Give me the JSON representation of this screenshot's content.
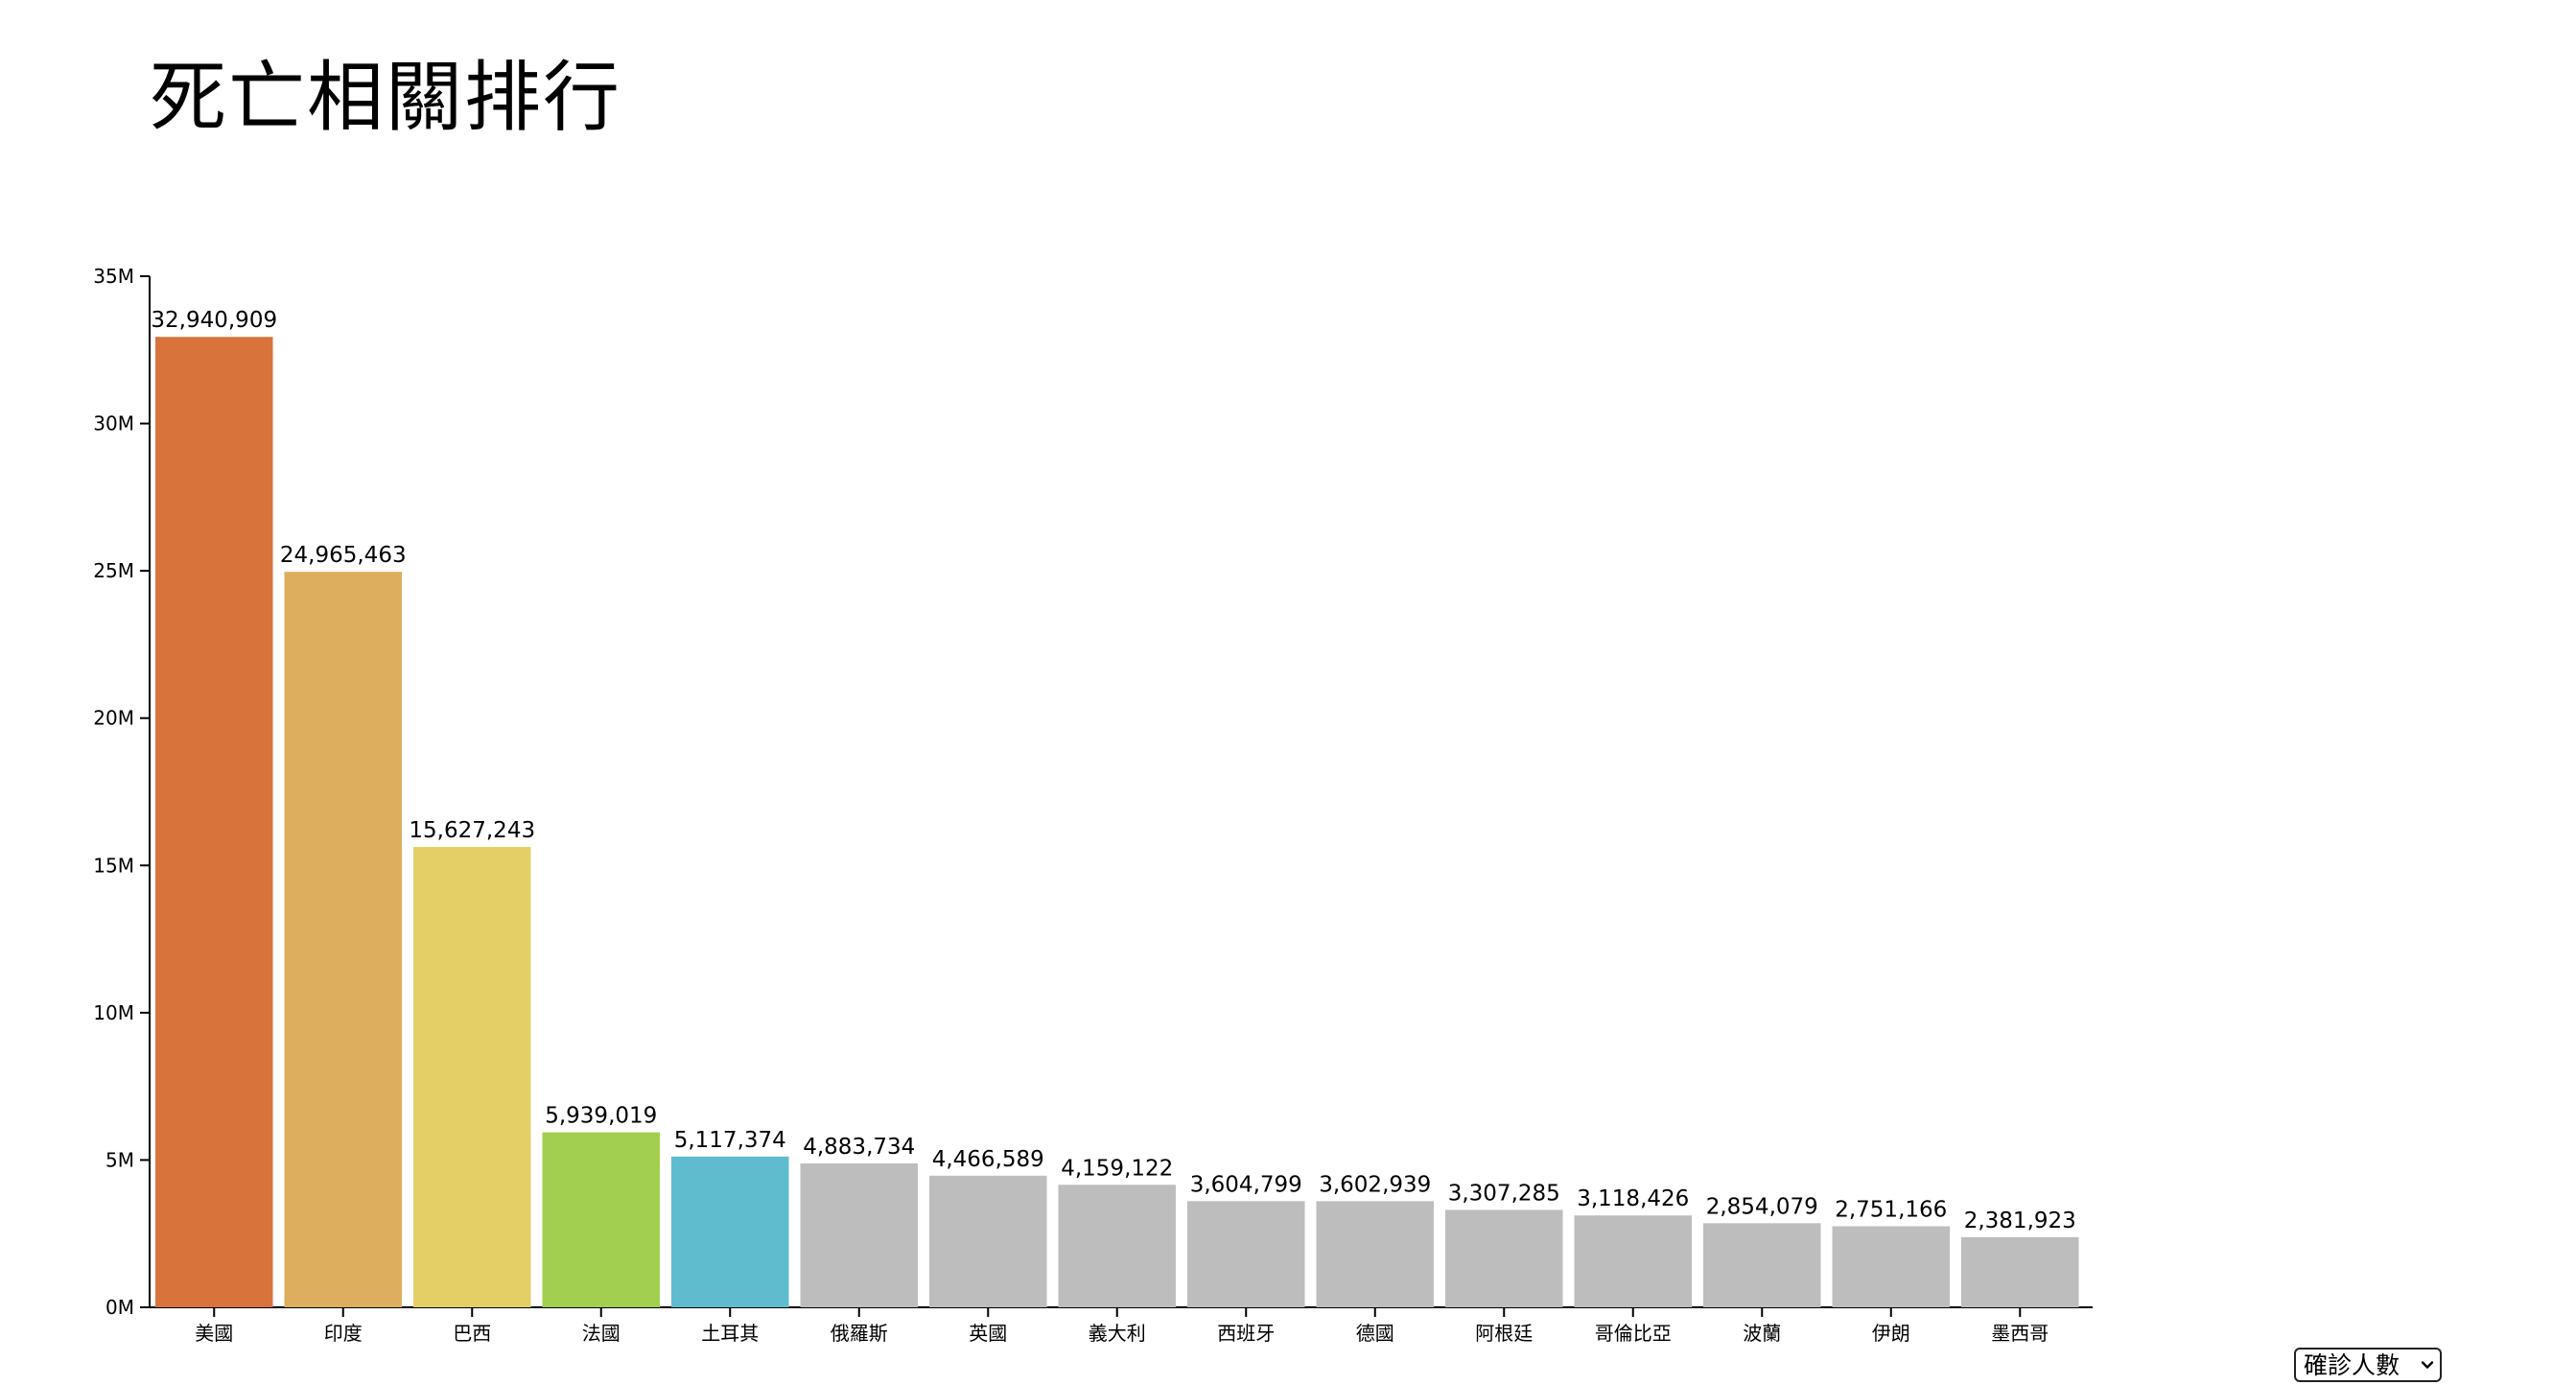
{
  "page": {
    "title": "死亡相關排行"
  },
  "metric_select": {
    "selected": "確診人數",
    "icon": "chevron-down-icon"
  },
  "chart_data": {
    "type": "bar",
    "title": "",
    "xlabel": "",
    "ylabel": "",
    "ylim": [
      0,
      35000000
    ],
    "yticks": [
      {
        "value": 0,
        "label": "0M"
      },
      {
        "value": 5000000,
        "label": "5M"
      },
      {
        "value": 10000000,
        "label": "10M"
      },
      {
        "value": 15000000,
        "label": "15M"
      },
      {
        "value": 20000000,
        "label": "20M"
      },
      {
        "value": 25000000,
        "label": "25M"
      },
      {
        "value": 30000000,
        "label": "30M"
      },
      {
        "value": 35000000,
        "label": "35M"
      }
    ],
    "categories": [
      "美國",
      "印度",
      "巴西",
      "法國",
      "土耳其",
      "俄羅斯",
      "英國",
      "義大利",
      "西班牙",
      "德國",
      "阿根廷",
      "哥倫比亞",
      "波蘭",
      "伊朗",
      "墨西哥"
    ],
    "values": [
      32940909,
      24965463,
      15627243,
      5939019,
      5117374,
      4883734,
      4466589,
      4159122,
      3604799,
      3602939,
      3307285,
      3118426,
      2854079,
      2751166,
      2381923
    ],
    "value_labels": [
      "32,940,909",
      "24,965,463",
      "15,627,243",
      "5,939,019",
      "5,117,374",
      "4,883,734",
      "4,466,589",
      "4,159,122",
      "3,604,799",
      "3,602,939",
      "3,307,285",
      "3,118,426",
      "2,854,079",
      "2,751,166",
      "2,381,923"
    ],
    "colors": [
      "#d8733b",
      "#dcae5e",
      "#e3cf66",
      "#a2cf4f",
      "#5fbccf",
      "#bdbdbd",
      "#bdbdbd",
      "#bdbdbd",
      "#bdbdbd",
      "#bdbdbd",
      "#bdbdbd",
      "#bdbdbd",
      "#bdbdbd",
      "#bdbdbd",
      "#bdbdbd"
    ],
    "grid": false,
    "legend": "none"
  }
}
